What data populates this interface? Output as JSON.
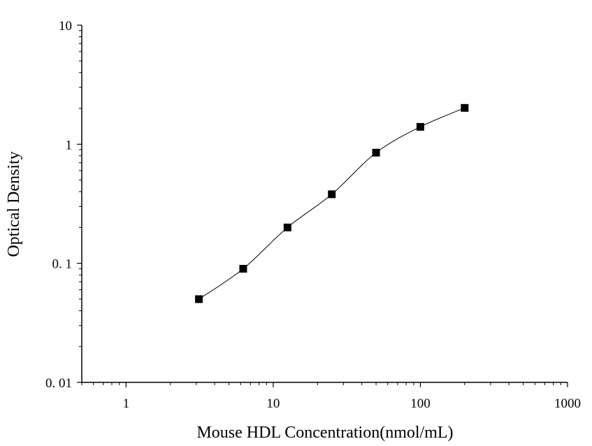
{
  "chart_data": {
    "type": "scatter",
    "title": "",
    "xlabel": "Mouse HDL Concentration(nmol/mL)",
    "ylabel": "Optical Density",
    "xscale": "log",
    "yscale": "log",
    "xlim": [
      0.5,
      1000
    ],
    "ylim": [
      0.01,
      10
    ],
    "x_ticks": [
      {
        "value": 1,
        "label": "1"
      },
      {
        "value": 10,
        "label": "10"
      },
      {
        "value": 100,
        "label": "100"
      },
      {
        "value": 1000,
        "label": "1000"
      }
    ],
    "y_ticks": [
      {
        "value": 0.01,
        "label": "0. 01"
      },
      {
        "value": 0.1,
        "label": "0. 1"
      },
      {
        "value": 1,
        "label": "1"
      },
      {
        "value": 10,
        "label": "10"
      }
    ],
    "grid": false,
    "legend": "none",
    "series": [
      {
        "x": [
          3.125,
          6.25,
          12.5,
          25,
          50,
          100,
          200
        ],
        "y": [
          0.05,
          0.09,
          0.2,
          0.38,
          0.85,
          1.4,
          2.02
        ],
        "marker": "square",
        "line": "smooth",
        "color": "#000000"
      }
    ]
  }
}
